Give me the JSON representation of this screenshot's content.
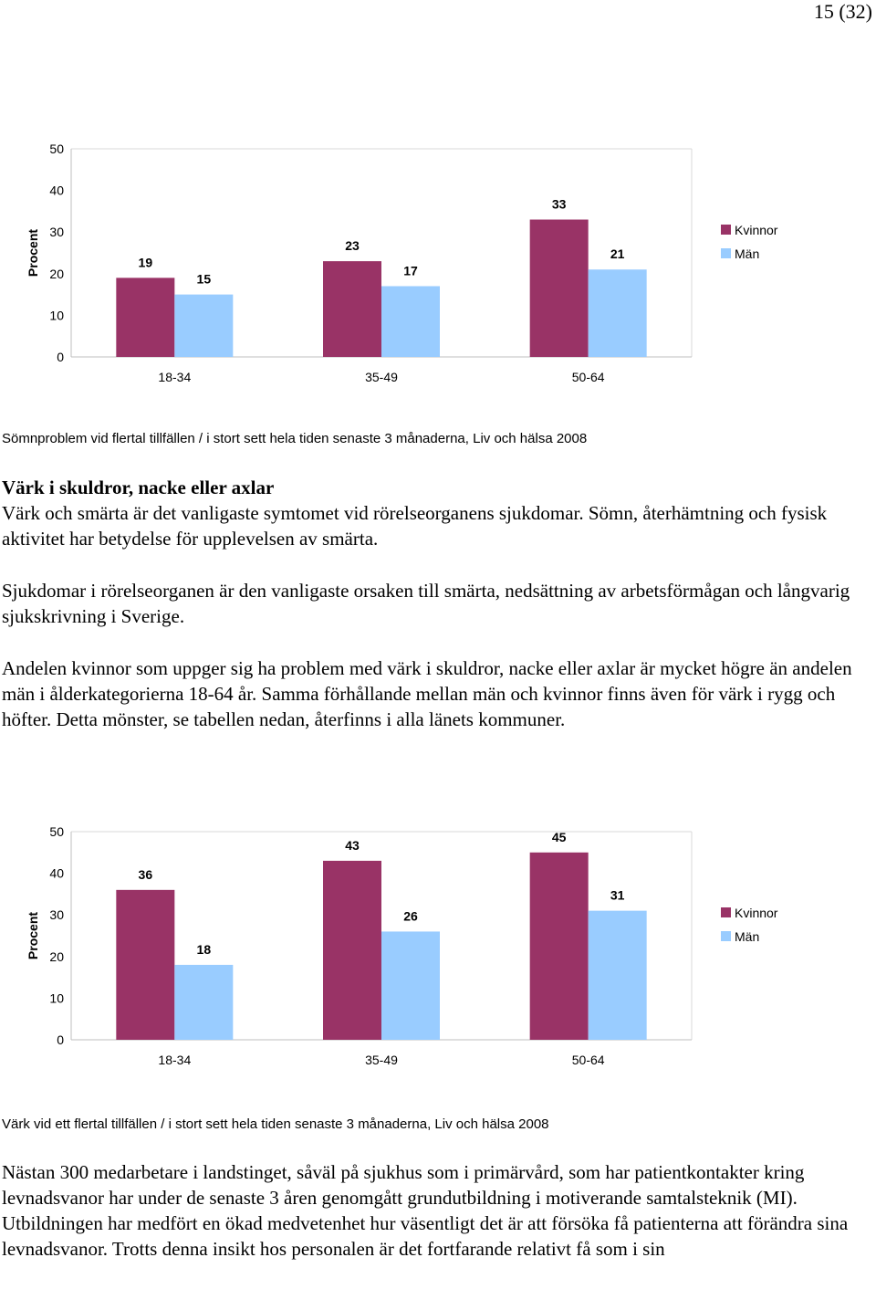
{
  "page": {
    "number": "15 (32)"
  },
  "charts_text": [
    {
      "caption": "Sömnproblem vid flertal tillfällen / i stort sett hela tiden  senaste 3 månaderna, Liv och hälsa 2008"
    },
    {
      "caption": "Värk vid ett flertal tillfällen / i stort sett hela tiden senaste 3 månaderna, Liv och hälsa 2008"
    }
  ],
  "chart_data": [
    {
      "type": "bar",
      "categories": [
        "18-34",
        "35-49",
        "50-64"
      ],
      "series": [
        {
          "name": "Kvinnor",
          "values": [
            19,
            23,
            33
          ],
          "color": "#993366"
        },
        {
          "name": "Män",
          "values": [
            15,
            17,
            21
          ],
          "color": "#99CCFF"
        }
      ],
      "ylabel": "Procent",
      "ylim": [
        0,
        50
      ],
      "yticks": [
        0,
        10,
        20,
        30,
        40,
        50
      ],
      "grid": false,
      "legend_position": "right"
    },
    {
      "type": "bar",
      "categories": [
        "18-34",
        "35-49",
        "50-64"
      ],
      "series": [
        {
          "name": "Kvinnor",
          "values": [
            36,
            43,
            45
          ],
          "color": "#993366"
        },
        {
          "name": "Män",
          "values": [
            18,
            26,
            31
          ],
          "color": "#99CCFF"
        }
      ],
      "ylabel": "Procent",
      "ylim": [
        0,
        50
      ],
      "yticks": [
        0,
        10,
        20,
        30,
        40,
        50
      ],
      "grid": false,
      "legend_position": "right"
    }
  ],
  "section_vark": {
    "heading": "Värk i skuldror, nacke eller axlar",
    "paragraphs": [
      "Värk och smärta är det vanligaste symtomet vid rörelseorganens sjukdomar. Sömn, återhämtning och fysisk aktivitet har betydelse för upplevelsen av smärta.",
      "Sjukdomar i rörelseorganen är den vanligaste orsaken till smärta, nedsättning av arbetsförmågan och långvarig sjukskrivning i Sverige.",
      "Andelen kvinnor som uppger sig ha problem med värk i skuldror, nacke eller axlar är mycket högre än andelen män i ålderkategorierna 18-64 år. Samma förhållande mellan män och kvinnor finns även för värk i rygg och höfter. Detta mönster, se tabellen nedan, återfinns i alla länets kommuner."
    ]
  },
  "section_bottom": {
    "paragraph": "Nästan 300 medarbetare i landstinget, såväl på sjukhus som i primärvård, som har patientkontakter kring levnadsvanor har under de senaste 3 åren genomgått grundutbildning i motiverande samtalsteknik (MI). Utbildningen har medfört en ökad medvetenhet hur väsentligt det är att försöka få patienterna att förändra sina levnadsvanor. Trotts denna insikt hos personalen är det fortfarande relativt få som i sin"
  }
}
